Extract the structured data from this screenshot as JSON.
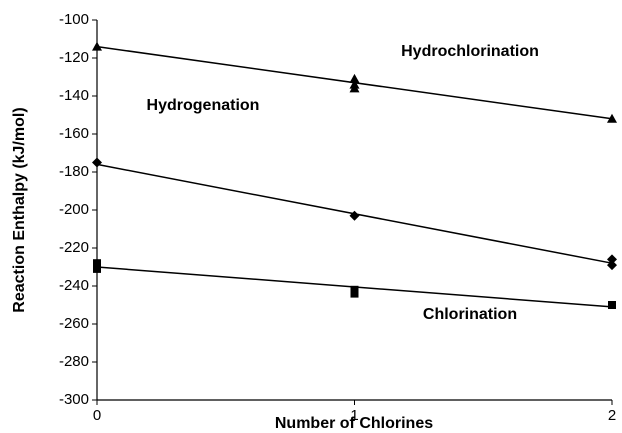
{
  "chart_data": {
    "type": "scatter",
    "xlabel": "Number of Chlorines",
    "ylabel": "Reaction Enthalpy (kJ/mol)",
    "xlim": [
      0,
      2
    ],
    "xticks": [
      0,
      1,
      2
    ],
    "ylim": [
      -300,
      -100
    ],
    "yticks": [
      -300,
      -280,
      -260,
      -240,
      -220,
      -200,
      -180,
      -160,
      -140,
      -120,
      -100
    ],
    "grid": false,
    "series": [
      {
        "name": "Hydrochlorination",
        "color": "#000000",
        "marker": "triangle",
        "x": [
          0,
          1,
          1,
          1,
          2
        ],
        "values": [
          -114,
          -131,
          -134,
          -136,
          -152
        ],
        "trend": [
          -114,
          -152
        ]
      },
      {
        "name": "Hydrogenation",
        "color": "#000000",
        "marker": "diamond",
        "x": [
          0,
          1,
          2,
          2
        ],
        "values": [
          -175,
          -203,
          -226,
          -229
        ],
        "trend": [
          -176,
          -228
        ]
      },
      {
        "name": "Chlorination",
        "color": "#000000",
        "marker": "square",
        "x": [
          0,
          0,
          1,
          1,
          2
        ],
        "values": [
          -228,
          -231,
          -242,
          -244,
          -250
        ],
        "trend": [
          -230,
          -251
        ]
      }
    ]
  }
}
